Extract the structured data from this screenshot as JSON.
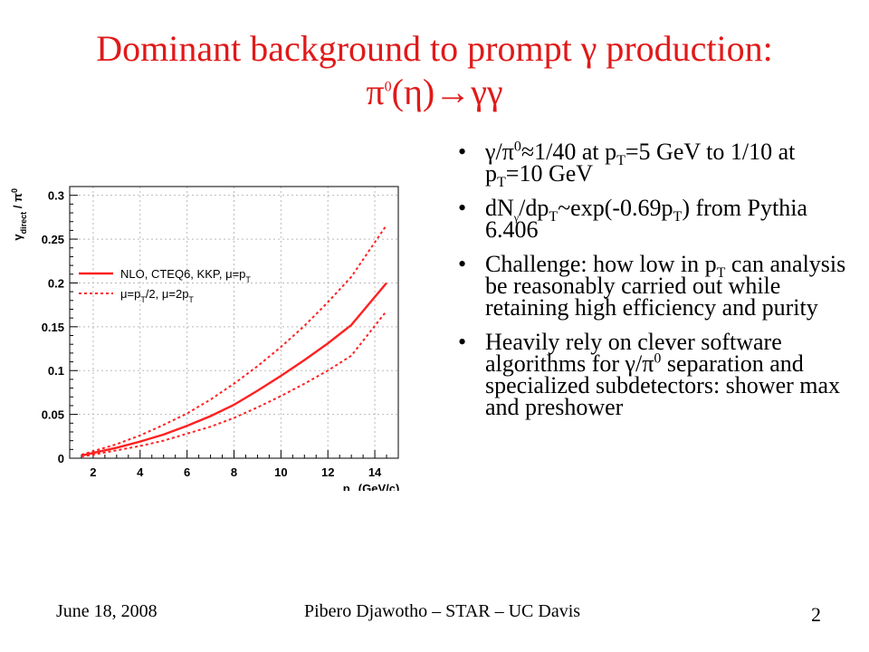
{
  "slide": {
    "title_line1": "Dominant background to prompt γ production:",
    "title_line2_html": "π<sup>0</sup>(η)→γγ",
    "bullets_html": [
      "γ/π<sup>0</sup>≈1/40 at p<sub>T</sub>=5 GeV to 1/10 at p<sub>T</sub>=10 GeV",
      "dN<sub class=\"tiny\">γ</sub>/dp<sub>T</sub>~exp(-0.69p<sub>T</sub>) from Pythia 6.406",
      "Challenge: how low in p<sub>T</sub> can analysis be reasonably carried out while retaining high efficiency and purity",
      "Heavily rely on clever software algorithms for γ/π<sup>0</sup> separation and specialized subdetectors: shower max and preshower"
    ],
    "footer_date": "June 18, 2008",
    "footer_author": "Pibero Djawotho – STAR – UC Davis",
    "page_number": "2"
  },
  "chart_data": {
    "type": "line",
    "xlabel": "p_T (GeV/c)",
    "ylabel": "γ_direct / π^0",
    "xlim": [
      1,
      15
    ],
    "ylim": [
      0,
      0.31
    ],
    "xticks": [
      2,
      4,
      6,
      8,
      10,
      12,
      14
    ],
    "xtick_labels": [
      "2",
      "4",
      "6",
      "8",
      "10",
      "12",
      "14"
    ],
    "yticks": [
      0,
      0.05,
      0.1,
      0.15,
      0.2,
      0.25,
      0.3
    ],
    "ytick_labels": [
      "0",
      "0.05",
      "0.1",
      "0.15",
      "0.2",
      "0.25",
      "0.3"
    ],
    "legend": [
      {
        "label_html": "NLO, CTEQ6, KKP, μ=p<tspan baseline-shift=\"sub\" font-size=\"9\">T</tspan>",
        "style": "solid"
      },
      {
        "label_html": "μ=p<tspan baseline-shift=\"sub\" font-size=\"9\">T</tspan>/2, μ=2p<tspan baseline-shift=\"sub\" font-size=\"9\">T</tspan>",
        "style": "dashed"
      }
    ],
    "legend_position": "top-left",
    "color": "#ff2020",
    "series": [
      {
        "style": "solid",
        "x": [
          1.5,
          2,
          3,
          4,
          5,
          6,
          7,
          8,
          9,
          10,
          11,
          12,
          13,
          14.5
        ],
        "y": [
          0.003,
          0.006,
          0.012,
          0.019,
          0.027,
          0.037,
          0.048,
          0.061,
          0.077,
          0.094,
          0.112,
          0.131,
          0.152,
          0.2
        ]
      },
      {
        "style": "dashed",
        "x": [
          1.5,
          2,
          3,
          4,
          5,
          6,
          7,
          8,
          9,
          10,
          11,
          12,
          13,
          14.5
        ],
        "y": [
          0.004,
          0.008,
          0.016,
          0.026,
          0.038,
          0.051,
          0.067,
          0.085,
          0.105,
          0.127,
          0.151,
          0.178,
          0.207,
          0.266
        ]
      },
      {
        "style": "dashed",
        "x": [
          1.5,
          2,
          3,
          4,
          5,
          6,
          7,
          8,
          9,
          10,
          11,
          12,
          13,
          14.5
        ],
        "y": [
          0.002,
          0.004,
          0.009,
          0.014,
          0.02,
          0.028,
          0.036,
          0.046,
          0.058,
          0.071,
          0.085,
          0.1,
          0.117,
          0.168
        ]
      }
    ]
  }
}
